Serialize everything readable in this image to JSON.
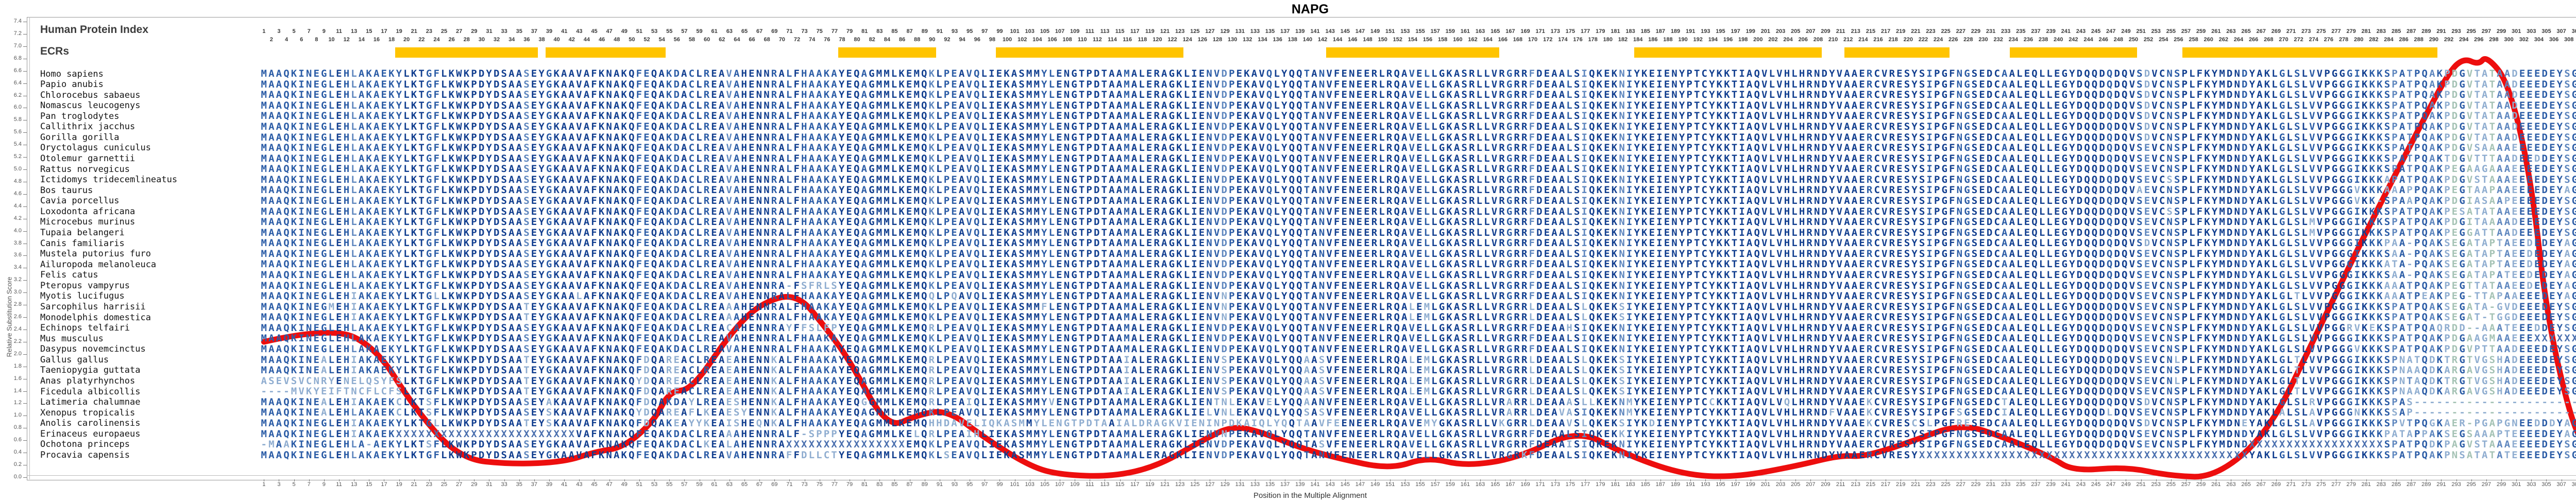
{
  "title": "NAPG",
  "panel": {
    "index_label": "Human Protein Index",
    "ecrs_label": "ECRs"
  },
  "axes": {
    "y_label": "Relative Substitution Score",
    "x_label": "Position in the Multiple Alignment",
    "y_min": 0.0,
    "y_max": 7.4,
    "y_step": 0.2
  },
  "colors": {
    "ecr_bar": "#FFC400",
    "score_line": "#ED0E0E",
    "seq_conserved": "#113E8F",
    "seq_high": "#2B5CA6",
    "seq_mid": "#5E86BE",
    "seq_low": "#8FADD0",
    "seq_variable": "#A4C2B4",
    "seq_unknown": "#4A6FAE"
  },
  "chart_data": {
    "type": "line",
    "title": "NAPG",
    "xlabel": "Position in the Multiple Alignment",
    "ylabel": "Relative Substitution Score",
    "ylim": [
      0.0,
      7.4
    ],
    "xlim": [
      1,
      313
    ],
    "legend_position": "none",
    "grid": false,
    "series": [
      {
        "name": "relative substitution score",
        "points": [
          [
            1,
            2.2
          ],
          [
            10,
            2.45
          ],
          [
            16,
            2.1
          ],
          [
            21,
            1.13
          ],
          [
            27,
            0.3
          ],
          [
            34,
            0.21
          ],
          [
            41,
            0.25
          ],
          [
            45,
            0.41
          ],
          [
            49,
            0.49
          ],
          [
            53,
            0.92
          ],
          [
            55,
            1.4
          ],
          [
            58,
            1.42
          ],
          [
            63,
            2.32
          ],
          [
            67,
            2.82
          ],
          [
            72,
            3.0
          ],
          [
            76,
            2.4
          ],
          [
            79,
            1.9
          ],
          [
            84,
            0.79
          ],
          [
            88,
            1.01
          ],
          [
            92,
            1.1
          ],
          [
            97,
            0.64
          ],
          [
            103,
            0.18
          ],
          [
            107,
            0.04
          ],
          [
            114,
            0.01
          ],
          [
            120,
            0.18
          ],
          [
            126,
            0.6
          ],
          [
            130,
            0.84
          ],
          [
            134,
            0.73
          ],
          [
            139,
            0.48
          ],
          [
            144,
            0.31
          ],
          [
            151,
            0.13
          ],
          [
            156,
            0.33
          ],
          [
            161,
            0.18
          ],
          [
            168,
            0.31
          ],
          [
            176,
            0.78
          ],
          [
            182,
            0.39
          ],
          [
            190,
            0.04
          ],
          [
            197,
            0.0
          ],
          [
            205,
            0.18
          ],
          [
            211,
            0.36
          ],
          [
            214,
            0.33
          ],
          [
            220,
            0.56
          ],
          [
            227,
            0.88
          ],
          [
            233,
            0.64
          ],
          [
            239,
            0.33
          ],
          [
            242,
            0.1
          ],
          [
            249,
            0.17
          ],
          [
            255,
            0.02
          ],
          [
            261,
            0.0
          ],
          [
            268,
            0.73
          ],
          [
            274,
            2.23
          ],
          [
            281,
            3.99
          ],
          [
            288,
            5.66
          ],
          [
            292,
            6.58
          ],
          [
            294,
            6.81
          ],
          [
            296,
            6.7
          ],
          [
            297,
            6.85
          ],
          [
            300,
            6.41
          ],
          [
            303,
            4.82
          ],
          [
            305,
            2.68
          ],
          [
            308,
            1.06
          ],
          [
            310,
            0.48
          ],
          [
            312,
            0.23
          ]
        ]
      }
    ],
    "ecr_regions": [
      {
        "start": 19,
        "end": 37
      },
      {
        "start": 39,
        "end": 54
      },
      {
        "start": 78,
        "end": 90
      },
      {
        "start": 99,
        "end": 123
      },
      {
        "start": 143,
        "end": 165
      },
      {
        "start": 184,
        "end": 208
      },
      {
        "start": 212,
        "end": 225
      },
      {
        "start": 234,
        "end": 250
      },
      {
        "start": 257,
        "end": 290
      }
    ]
  },
  "alignment": {
    "length": 312,
    "segment_library": {
      "A0": "MAAQKINEGLEHLAKAEKYLKTGFLKWKPDYDSAASEYGKAAVAFKNA",
      "A22": "MAAQKINEGLEHIAKAEKYLKTGLLKWKPDYDSAASEYGKAALAFKNA",
      "A23": "MAAQKINEGMEHIAKAEKYLKTGFLKWKPDYDSAATEYGKAAVAFKNA",
      "A24": "MAAQKINEGLEHIAKAEKYLKTGFLKWKPDYDSAATEYGKAAVAFKNA",
      "A28": "MAAQKINEALEHIAKAEKYLKTGFLKWKPDYDSAATEYGKAAVAFKNA",
      "A30": "ASEVSVCNRYENELQSYFSLKTGFLKWKPDYDSAATEYGKAAVAFKNA",
      "A31": "----MVKYEIFTNCFLCFSLKTGFLKWKPDYDSAATEYGKAAVAFKNA",
      "A32": "MAAQKINEALEHIAKAEKCLKTSFLKWKPDYDSAASEYAKAAVAFKNA",
      "A33": "MAAQKINEALEHLAKAEKCLKTSFLKWKPDYDSAASEYSKAAVAFKNA",
      "A34": "MAAQKINEGLEHIAKAEKYLKTGLLKWKPDYDSAATEYSKAAVAFKNA",
      "A35": "MAAQKINEGLEHIAKAEKXXXXXXXXXXXXXXXXXXXXXXXXVAFKNA",
      "A36": "-MAAKINEGLEHLA-AEKYLKTSFLKWKPDYDSAASEYGKAAVAFKNA",
      "B0": "KQFEQAKDACLREAVAHENNRALFHAAKAYEQAGMMLKEMQKLPEAVQ",
      "B21": "KQFEQAKDACLREAVAHENNRA-FSFRLSYEQAGMMLKEMQKLPEAVQ",
      "B22": "KQFEQAKDACLREAVAHENNRALFHAAKAYEQAGMMLKEMQQLPQAVQ",
      "B23": "KQFEQAKDACLREAAAHENNRALFHAAKAYEQAGMMLKEMQKLPEAVQ",
      "B25": "KQFEQAKDACLREACAHENNRAYFFSLFPYEQAGMMLKEMQRLPEAVQ",
      "B28": "KQFDQAREACLREAEAHENNKALFHAAKAYEQAGMMLKEMQRLPEAVQ",
      "B30": "KQYDQAREACLREAEAHENNKALFHAAKAYEQAGMMLKEMQRLPEAVQ",
      "B32": "KQFDQAKDAYLREAESHENNKALFHAAKAYEQGGMMLKEMQRLPEAIQ",
      "B33": "KQYDQAREAFLKEAESYENNKALFHAAKAYEQAGMMLKEMQKLPEAVQ",
      "B34": "KQFDQAKEAYYKEAISHEQNKALFHAAKAYEQAGMMLKEMQHHDAVEL",
      "B35": "KQFEQAKDACLREAAAHENNRALF-SPPPYEQAGMMLKELQRLPEAIH",
      "B36": "KQFEQAKDACLKEALAHENNRAXXXXXXXXXXXXXXXXEMQKLPEAVQ",
      "B37": "KQFEQAKDACLREAVAHENNRAFFDLLCTYEQAGMMLKEMQKLSEAVQ",
      "C0": "LIEKASMMYLENGTPDTAAMALERAGKLIENVDPEKAVQLYQQTANVF",
      "C22": "LIEKASMMYLENGTPDTAAMALERAGKLIENVNPEKAVQLYQQTANVF",
      "C23": "LIEKASMMFLENGTPDTAAMALERAGKLIENVNPEKAVQLYQQTANVF",
      "C28": "LIEKASMMYLENGTPDTAAIALERAGKLIENVSPEKAVQLYQQAASVF",
      "C32": "LIEKASMMYVENGTPDTAAMALERAGKLIENTNLEKAVELYQQAANVF",
      "C33": "LIEKASMMYLENGTPDTAAMALERAGKLIELVNLEKAVQLYQQSASVF",
      "C34": "IQKASMMYLENGTPDTAAIALDRAGKVIENINPDKAIQLYQQTAAVFE",
      "C36": "LIEKASMMYLENGTPDTAAMALERAGKLIENVDPEKAVQLYQQTASVF",
      "D0": "ENEERLRQAVELLGKASRLLVRGRRFDEAALSIQKEKNIYKEIENYPT",
      "D23": "ENEERLRQALEMLGKASRLLVRGRRLDEAALSLQKEKSIYKEIENYPT",
      "D25": "ENEERLRQAVELLGKASRLLVRGRRFDEAAHSIQKEKNIYKEIENYPT",
      "D32": "ENEERLRQAVELLGKASRLLVRARRLDEAAASLLKEKNMYKEIENYPT",
      "D33": "ENEERLRQAVELLGKASRLLVRARRLDEAVASIQKEKNMYKEIENYPT",
      "D34": "ENEERLRQAVEMYGKASRLLVKGRRLDEAAVSLQKEKSIYKDIENYPT",
      "D35": "ENEERLRQAVELLGKASRLLVRGRRFDEAALSIQKEKKIYKEIENYPT",
      "D36": "ENEERLRQAVELLGKASRLLVRGRRFDEAAISIQKEKNIYKEIENYPT",
      "D37": "ENEERLRQAVELLGKASRLLVRGRKFDEAALSIQKEKNIYKEIENYPT",
      "E0": "CYKKTIAQVLVHLHRNDYVAAERCVRESYSIPGFNGSEDCAALEQLLE",
      "E32": "CCKKTIAQVLVQLHRNDYVAAEKCVRESYSIPGFNGSEDCTALEQLLE",
      "E33": "CYKKTIAQVLVHLHRNDFVAAEKCVRESYSIPGFSGSEDCIALEQLLE",
      "E34": "CYKKTIAQVLVHLHRNDYVAAEKCVRESCSLPGFRESEDCAALEQLLE",
      "E37": "CYKKTIAQVLVHLHRNDYVAAERCVRESYXXXXXXXXXXXXXXXXXXX",
      "F0": "GYDQQDQDQVSDVCNSPLFKYMDNDYAKLGLSLVVPGGGIKKKSPAT",
      "F8": "GYDQQDQDQVSEVCNSPLFKYMDNDYAKLGLSLVVPGGGIKKKSPAT",
      "F11": "GYDQQDQDQVSEVCSSPLFKYMDNDYAKLGLSLVVPGGGIKKKAPAT",
      "F12": "GYDQQDQDQVAEVCNSPLFKYMDNDYAKLGLSLVVPGGGVKKKAAAP",
      "F13": "GYDQQDQDQVSEVCNSPLFKYMDNDYAKLGLSLVVPGGGVKK-SPAA",
      "F14": "GYDQQDQDQVSEVCSSPLFKYMDNDYAKLGLSLVVPGGGIKKKSPAT",
      "F15": "GYDQQDQDQVSEVCNSPLFKYMDNDYAKLGLSLMVPGGGIKKKSPAT",
      "F17": "GYDQQDQDQVSDVCNSPLFKYMDNDYAKLGLSLVVPGGGIKKKPAA-",
      "F18": "GYDQQDQDQVSEVCNSPLFKYMDNDYAKLGLSLVVPGGGIKKKSAA-",
      "F19": "GYDQQDQDQVSEVCNSPLFKYMDNDYAKLGLSLVVPGGGIKKKATA-",
      "F21": "GYDQQDQDQVSEVCNSPLFKYMDNDYAKLGLSLVVPGGGIKKKAAAT",
      "F22": "GYDQQDQDQVSEVCNSPLFKYMDNDYAKLGLTLVVPGGGIKKKAAAT",
      "F25": "GYDQQDQDQVSEVCNSPLFKYMDNDYAKLGLSLVVPGGRVKEKSPAT",
      "F27": "GYDQQDQDQVSEVCNSPLFKYMDNDYAKLGLSLVVPGGGVKKKSPAT",
      "F28": "GYDQQDQDQVSEVCNLPLFKYMDNDYAKLGLTLVVPGGGIKKKSPNA",
      "F29": "GYDQQDQDQVSEVCNSPLFKYMDNDYAKLGLTLVVPGGGIKKKSPNA",
      "F30": "GYDQQDQDQVSEVCNLPLFKYMDNDYAKLGLTLVVPGGGIKKKSPNT",
      "F32": "GYDQQDQDQVSDVCNSPLFKYMDNDYAKLGLSLRVPGGGIKKKSPAS",
      "F33": "GYDQQDLDQVSEVCNSPLFKYMDNDYAKLALSLAVPGGGNKKKSSAP",
      "F34": "GYDQQDQDQVSDVCNSPLFKYMDNEYAKLGLSLAVPGGGIKKKSPVT",
      "F35": "GYDQQDQDQVSEVCNSPLFKYMDNDYAKLGLSLVVPGGGIKKKPATA",
      "F36": "GYDQQDQDQVSEVCNSPLFKYMDNDXXXXXXXXXXXXXXXXXXSPAT",
      "F37": "XXXXXXXXXXXXXXXXXXXXXXXXXYAKLGLSLVVPGGGIKKKSPAT",
      "G0": "PQAKPDGVTATAADEEEDEYSGGLC",
      "G8": "PQAKPDGVSAAAAEEEEDEYSGGLC",
      "G9": "PQAKTDGVTTTAADEEDDEYSGGLC",
      "G10": "PQAKPEGAAGAAAEEEEDEYSGGLC",
      "G11": "PQAKPDGVSTAAAEEEEDEYSGGLC",
      "G12": "PQAKPEGTAAPAAEEEEDEYAGGLC",
      "G13": "PQAKPDGIASAAPEEEEDEYSGGLC",
      "G14": "PQAKPESATATAAEEEEDEYSGGLC",
      "G15": "PQAKPDGITAAAADEEEDEYSGGLC",
      "G16": "PQAKPEGGATTAADEEEDEYSGGLC",
      "G17": "PQAKSEGATAPTAEEDEDEYAGGLC",
      "G20": "PQAKSEGATAPATEEDEDEYAGGLC",
      "G21": "PQAKPEGTTATAAEEDEDEYAGGLC",
      "G22": "PEAKPEG-TTAPAAEEEDEYAGGLC",
      "G23": "PQAKSEGATA-GVDEEEDEYSGGLC",
      "G24": "PQAKSEGAT-TGGDEEEDEYSGGLC",
      "G25": "PQAQRDD--AAATEEEDDEYSGGLC",
      "G26": "PQAKPDGAAGMAAEEEXXXXXXXXX",
      "G27": "PQAKPDGVPTTAADEEEDEYSGGLC",
      "G28": "TQDKTRGTVGSHADEEEDEYSGGLC",
      "G29": "AQDKARGAVGSHADEEEDEYSGGLC",
      "G30": "AQDKTRGTVGSHADEEEDEYSGGLC",
      "G34": "PQGKAER-PGAPGNEEDDDYAGGLC",
      "G35": "PPAKSEGSAAAPTEEEEDEYAGGLC",
      "G36": "PQDKPAGVSTAAAEEEEDEYSGGLC",
      "G37": "PQAKPNSATATATEEEEDEYSGGLC"
    },
    "species": [
      {
        "name": "Homo sapiens",
        "segments": [
          "A0",
          "B0",
          "C0",
          "D0",
          "E0",
          "F0",
          "G0"
        ]
      },
      {
        "name": "Papio anubis",
        "segments": [
          "A0",
          "B0",
          "C0",
          "D0",
          "E0",
          "F0",
          "G0"
        ]
      },
      {
        "name": "Chlorocebus sabaeus",
        "segments": [
          "A0",
          "B0",
          "C0",
          "D0",
          "E0",
          "F0",
          "G0"
        ]
      },
      {
        "name": "Nomascus leucogenys",
        "segments": [
          "A0",
          "B0",
          "C0",
          "D0",
          "E0",
          "F0",
          "G0"
        ]
      },
      {
        "name": "Pan troglodytes",
        "segments": [
          "A0",
          "B0",
          "C0",
          "D0",
          "E0",
          "F0",
          "G0"
        ]
      },
      {
        "name": "Callithrix jacchus",
        "segments": [
          "A0",
          "B0",
          "C0",
          "D0",
          "E0",
          "F0",
          "G0"
        ]
      },
      {
        "name": "Gorilla gorilla",
        "segments": [
          "A0",
          "B0",
          "C0",
          "D0",
          "E0",
          "F0",
          "G0"
        ]
      },
      {
        "name": "Oryctolagus cuniculus",
        "segments": [
          "A0",
          "B0",
          "C0",
          "D0",
          "E0",
          "F8",
          "G8"
        ]
      },
      {
        "name": "Otolemur garnettii",
        "segments": [
          "A0",
          "B0",
          "C0",
          "D0",
          "E0",
          "F8",
          "G9"
        ]
      },
      {
        "name": "Rattus norvegicus",
        "segments": [
          "A0",
          "B0",
          "C0",
          "D0",
          "E0",
          "F8",
          "G10"
        ]
      },
      {
        "name": "Ictidomys tridecemlineatus",
        "segments": [
          "A0",
          "B0",
          "C0",
          "D0",
          "E0",
          "F11",
          "G11"
        ]
      },
      {
        "name": "Bos taurus",
        "segments": [
          "A0",
          "B0",
          "C0",
          "D0",
          "E0",
          "F12",
          "G12"
        ]
      },
      {
        "name": "Cavia porcellus",
        "segments": [
          "A0",
          "B0",
          "C0",
          "D0",
          "E0",
          "F13",
          "G13"
        ]
      },
      {
        "name": "Loxodonta africana",
        "segments": [
          "A0",
          "B0",
          "C0",
          "D0",
          "E0",
          "F14",
          "G14"
        ]
      },
      {
        "name": "Microcebus murinus",
        "segments": [
          "A0",
          "B0",
          "C0",
          "D0",
          "E0",
          "F15",
          "G15"
        ]
      },
      {
        "name": "Tupaia belangeri",
        "segments": [
          "A0",
          "B0",
          "C0",
          "D0",
          "E0",
          "F15",
          "G16"
        ]
      },
      {
        "name": "Canis familiaris",
        "segments": [
          "A0",
          "B0",
          "C0",
          "D0",
          "E0",
          "F17",
          "G17"
        ]
      },
      {
        "name": "Mustela putorius furo",
        "segments": [
          "A0",
          "B0",
          "C0",
          "D0",
          "E0",
          "F18",
          "G17"
        ]
      },
      {
        "name": "Ailuropoda melanoleuca",
        "segments": [
          "A0",
          "B0",
          "C0",
          "D0",
          "E0",
          "F19",
          "G17"
        ]
      },
      {
        "name": "Felis catus",
        "segments": [
          "A0",
          "B0",
          "C0",
          "D0",
          "E0",
          "F18",
          "G20"
        ]
      },
      {
        "name": "Pteropus vampyrus",
        "segments": [
          "A0",
          "B21",
          "C0",
          "D0",
          "E0",
          "F21",
          "G21"
        ]
      },
      {
        "name": "Myotis lucifugus",
        "segments": [
          "A22",
          "B22",
          "C22",
          "D0",
          "E0",
          "F22",
          "G22"
        ]
      },
      {
        "name": "Sarcophilus harrisii",
        "segments": [
          "A23",
          "B23",
          "C23",
          "D23",
          "E0",
          "F8",
          "G23"
        ]
      },
      {
        "name": "Monodelphis domestica",
        "segments": [
          "A24",
          "B23",
          "C22",
          "D23",
          "E0",
          "F8",
          "G24"
        ]
      },
      {
        "name": "Echinops telfairi",
        "segments": [
          "A0",
          "B25",
          "C0",
          "D25",
          "E0",
          "F25",
          "G25"
        ]
      },
      {
        "name": "Mus musculus",
        "segments": [
          "A0",
          "B0",
          "C0",
          "D0",
          "E0",
          "F8",
          "G26"
        ]
      },
      {
        "name": "Dasypus novemcinctus",
        "segments": [
          "A0",
          "B0",
          "C0",
          "D0",
          "E0",
          "F27",
          "G27"
        ]
      },
      {
        "name": "Gallus gallus",
        "segments": [
          "A28",
          "B28",
          "C28",
          "D23",
          "E0",
          "F28",
          "G28"
        ]
      },
      {
        "name": "Taeniopygia guttata",
        "segments": [
          "A28",
          "B28",
          "C28",
          "D23",
          "E0",
          "F29",
          "G29"
        ]
      },
      {
        "name": "Anas platyrhynchos",
        "segments": [
          "A30",
          "B30",
          "C28",
          "D23",
          "E0",
          "F30",
          "G30"
        ]
      },
      {
        "name": "Ficedula albicollis",
        "segments": [
          "A31",
          "B28",
          "C28",
          "D23",
          "E0",
          "F29",
          "G29"
        ]
      },
      {
        "name": "Latimeria chalumnae",
        "segments": [
          "A32",
          "B32",
          "C32",
          "D32",
          "E32",
          "F32",
          "G32"
        ]
      },
      {
        "name": "Xenopus tropicalis",
        "segments": [
          "A33",
          "B33",
          "C33",
          "D33",
          "E33",
          "F33",
          "G33"
        ]
      },
      {
        "name": "Anolis carolinensis",
        "segments": [
          "A34",
          "B34",
          "C34",
          "D34",
          "E34",
          "F34",
          "G34"
        ]
      },
      {
        "name": "Erinaceus europaeus",
        "segments": [
          "A35",
          "B35",
          "C22",
          "D35",
          "E0",
          "F35",
          "G35"
        ]
      },
      {
        "name": "Ochotona princeps",
        "segments": [
          "A36",
          "B36",
          "C36",
          "D36",
          "E0",
          "F36",
          "G36"
        ]
      },
      {
        "name": "Procavia capensis",
        "segments": [
          "A0",
          "B37",
          "C0",
          "D37",
          "E37",
          "F37",
          "G37"
        ]
      }
    ]
  }
}
